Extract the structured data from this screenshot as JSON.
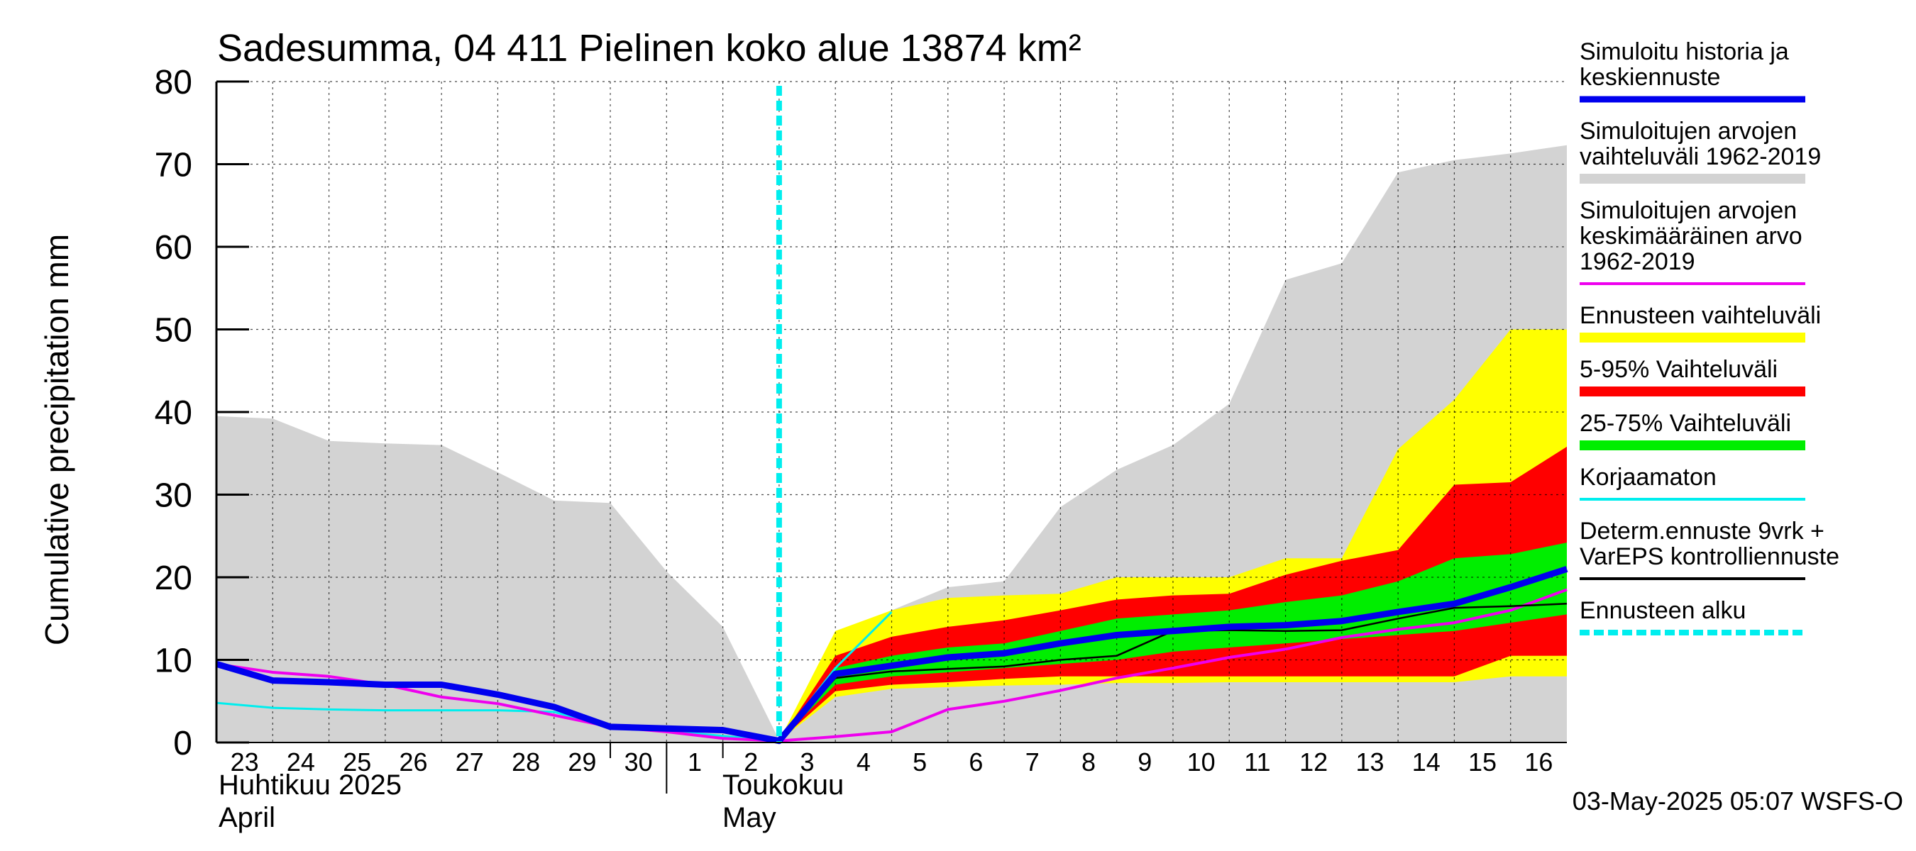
{
  "chart_data": {
    "type": "area",
    "title": "Sadesumma, 04 411 Pielinen koko alue 13874 km²",
    "ylabel": "Cumulative precipitation   mm",
    "ylim": [
      0,
      80
    ],
    "yticks": [
      0,
      10,
      20,
      30,
      40,
      50,
      60,
      70,
      80
    ],
    "grid": true,
    "legend_placement": "right",
    "x_dates": [
      "2025-04-23",
      "2025-04-24",
      "2025-04-25",
      "2025-04-26",
      "2025-04-27",
      "2025-04-28",
      "2025-04-29",
      "2025-04-30",
      "2025-05-01",
      "2025-05-02",
      "2025-05-03",
      "2025-05-04",
      "2025-05-05",
      "2025-05-06",
      "2025-05-07",
      "2025-05-08",
      "2025-05-09",
      "2025-05-10",
      "2025-05-11",
      "2025-05-12",
      "2025-05-13",
      "2025-05-14",
      "2025-05-15",
      "2025-05-16",
      "2025-05-17"
    ],
    "tick_labels": [
      "23",
      "24",
      "25",
      "26",
      "27",
      "28",
      "29",
      "30",
      "1",
      "2",
      "3",
      "4",
      "5",
      "6",
      "7",
      "8",
      "9",
      "10",
      "11",
      "12",
      "13",
      "14",
      "15",
      "16"
    ],
    "month_labels": [
      {
        "line1": "Huhtikuu  2025",
        "line2": "April"
      },
      {
        "line1": "Toukokuu",
        "line2": "May"
      }
    ],
    "forecast_start": "2025-05-03",
    "timestamp": "03-May-2025 05:07 WSFS-O",
    "colors": {
      "history_range": "#d3d3d3",
      "forecast_range": "#ffff00",
      "p5_95": "#ff0000",
      "p25_75": "#00ee00",
      "simulated": "#0000ee",
      "mean": "#ee00ee",
      "uncorrected": "#00eeee",
      "deterministic": "#000000",
      "forecast_start": "#00eeee"
    },
    "series": [
      {
        "name": "Simuloitu historia ja keskiennuste",
        "x": [
          "2025-04-23",
          "2025-04-24",
          "2025-04-25",
          "2025-04-26",
          "2025-04-27",
          "2025-04-28",
          "2025-04-29",
          "2025-04-30",
          "2025-05-01",
          "2025-05-02",
          "2025-05-03",
          "2025-05-04",
          "2025-05-05",
          "2025-05-06",
          "2025-05-07",
          "2025-05-08",
          "2025-05-09",
          "2025-05-10",
          "2025-05-11",
          "2025-05-12",
          "2025-05-13",
          "2025-05-14",
          "2025-05-15",
          "2025-05-16",
          "2025-05-17"
        ],
        "values": [
          9.5,
          7.5,
          7.3,
          7.0,
          7.0,
          5.8,
          4.3,
          1.9,
          1.7,
          1.5,
          0.2,
          8.3,
          9.3,
          10.3,
          10.8,
          12.0,
          13.0,
          13.5,
          14.0,
          14.2,
          14.7,
          15.8,
          16.8,
          18.8,
          21.0
        ]
      },
      {
        "name": "Simuloitujen arvojen keskimääräinen arvo 1962-2019",
        "x": [
          "2025-04-23",
          "2025-04-24",
          "2025-04-25",
          "2025-04-26",
          "2025-04-27",
          "2025-04-28",
          "2025-04-29",
          "2025-04-30",
          "2025-05-01",
          "2025-05-02",
          "2025-05-03",
          "2025-05-04",
          "2025-05-05",
          "2025-05-06",
          "2025-05-07",
          "2025-05-08",
          "2025-05-09",
          "2025-05-10",
          "2025-05-11",
          "2025-05-12",
          "2025-05-13",
          "2025-05-14",
          "2025-05-15",
          "2025-05-16",
          "2025-05-17"
        ],
        "values": [
          9.5,
          8.5,
          8.0,
          7.0,
          5.5,
          4.7,
          3.3,
          1.9,
          1.3,
          0.5,
          0.2,
          0.7,
          1.3,
          4.0,
          5.0,
          6.3,
          7.8,
          9.0,
          10.3,
          11.3,
          12.7,
          13.7,
          14.5,
          16.0,
          18.5
        ]
      },
      {
        "name": "Korjaamaton",
        "x": [
          "2025-04-23",
          "2025-04-24",
          "2025-04-25",
          "2025-04-26",
          "2025-04-27",
          "2025-04-28",
          "2025-04-29",
          "2025-04-30",
          "2025-05-01",
          "2025-05-02",
          "2025-05-03",
          "2025-05-04",
          "2025-05-05"
        ],
        "values": [
          4.8,
          4.2,
          4.0,
          3.9,
          3.9,
          3.9,
          3.7,
          1.8,
          1.4,
          0.8,
          0.2,
          9.0,
          15.8
        ]
      },
      {
        "name": "Determ.ennuste 9vrk + VarEPS kontrolliennuste",
        "x": [
          "2025-05-03",
          "2025-05-04",
          "2025-05-05",
          "2025-05-06",
          "2025-05-07",
          "2025-05-08",
          "2025-05-09",
          "2025-05-10",
          "2025-05-11",
          "2025-05-12",
          "2025-05-13",
          "2025-05-14",
          "2025-05-15",
          "2025-05-16",
          "2025-05-17"
        ],
        "values": [
          0.2,
          7.8,
          8.6,
          8.9,
          9.2,
          10.0,
          10.5,
          13.5,
          13.6,
          13.5,
          13.6,
          15.0,
          16.3,
          16.5,
          16.8
        ]
      }
    ],
    "bands": [
      {
        "name": "Simuloitujen arvojen vaihteluväli 1962-2019",
        "x": [
          "2025-04-23",
          "2025-04-24",
          "2025-04-25",
          "2025-04-26",
          "2025-04-27",
          "2025-04-28",
          "2025-04-29",
          "2025-04-30",
          "2025-05-01",
          "2025-05-02",
          "2025-05-03",
          "2025-05-04",
          "2025-05-05",
          "2025-05-06",
          "2025-05-07",
          "2025-05-08",
          "2025-05-09",
          "2025-05-10",
          "2025-05-11",
          "2025-05-12",
          "2025-05-13",
          "2025-05-14",
          "2025-05-15",
          "2025-05-16",
          "2025-05-17"
        ],
        "lower": [
          0,
          0,
          0,
          0,
          0,
          0,
          0,
          0,
          0,
          0,
          0,
          0,
          0,
          0,
          0,
          0,
          0,
          0,
          0,
          0,
          0,
          0,
          0,
          0,
          0
        ],
        "upper": [
          39.5,
          39.2,
          36.5,
          36.2,
          36.0,
          32.7,
          29.3,
          29.0,
          20.7,
          14.0,
          0.3,
          8.0,
          16.0,
          18.8,
          19.5,
          28.5,
          33.0,
          36.0,
          41.0,
          56.0,
          58.0,
          69.0,
          70.5,
          71.3,
          72.3
        ]
      },
      {
        "name": "Ennusteen vaihteluväli",
        "x": [
          "2025-05-03",
          "2025-05-04",
          "2025-05-05",
          "2025-05-06",
          "2025-05-07",
          "2025-05-08",
          "2025-05-09",
          "2025-05-10",
          "2025-05-11",
          "2025-05-12",
          "2025-05-13",
          "2025-05-14",
          "2025-05-15",
          "2025-05-16",
          "2025-05-17"
        ],
        "lower": [
          0.2,
          5.5,
          6.5,
          6.7,
          6.9,
          7.0,
          7.2,
          7.2,
          7.3,
          7.3,
          7.3,
          7.3,
          7.3,
          8.0,
          8.0
        ],
        "upper": [
          0.2,
          13.5,
          16.0,
          17.5,
          17.8,
          18.0,
          20.0,
          20.0,
          20.0,
          22.3,
          22.3,
          35.5,
          41.5,
          50.0,
          50.0
        ]
      },
      {
        "name": "5-95% Vaihteluväli",
        "x": [
          "2025-05-03",
          "2025-05-04",
          "2025-05-05",
          "2025-05-06",
          "2025-05-07",
          "2025-05-08",
          "2025-05-09",
          "2025-05-10",
          "2025-05-11",
          "2025-05-12",
          "2025-05-13",
          "2025-05-14",
          "2025-05-15",
          "2025-05-16",
          "2025-05-17"
        ],
        "lower": [
          0.2,
          6.2,
          7.0,
          7.3,
          7.7,
          8.0,
          8.0,
          8.0,
          8.0,
          8.0,
          8.0,
          8.0,
          8.0,
          10.5,
          10.5
        ],
        "upper": [
          0.2,
          10.5,
          12.8,
          14.0,
          14.8,
          16.0,
          17.3,
          17.8,
          18.0,
          20.3,
          22.0,
          23.3,
          31.2,
          31.5,
          35.8
        ]
      },
      {
        "name": "25-75% Vaihteluväli",
        "x": [
          "2025-05-03",
          "2025-05-04",
          "2025-05-05",
          "2025-05-06",
          "2025-05-07",
          "2025-05-08",
          "2025-05-09",
          "2025-05-10",
          "2025-05-11",
          "2025-05-12",
          "2025-05-13",
          "2025-05-14",
          "2025-05-15",
          "2025-05-16",
          "2025-05-17"
        ],
        "lower": [
          0.2,
          7.0,
          8.0,
          8.5,
          9.0,
          9.5,
          10.0,
          11.0,
          11.5,
          12.0,
          12.5,
          13.0,
          13.5,
          14.5,
          15.5
        ],
        "upper": [
          0.2,
          9.0,
          10.5,
          11.5,
          12.0,
          13.5,
          15.0,
          15.5,
          16.0,
          17.0,
          17.8,
          19.5,
          22.3,
          22.8,
          24.2
        ]
      }
    ],
    "legend": [
      {
        "label": "Simuloitu historia ja\nkeskiennuste",
        "style": "thick-line",
        "color": "#0000ee"
      },
      {
        "label": "Simuloitujen arvojen\nvaihteluväli 1962-2019",
        "style": "bar",
        "color": "#d3d3d3"
      },
      {
        "label": "Simuloitujen arvojen\nkeskimääräinen arvo\n   1962-2019",
        "style": "line",
        "color": "#ee00ee"
      },
      {
        "label": "Ennusteen vaihteluväli",
        "style": "bar",
        "color": "#ffff00"
      },
      {
        "label": "5-95% Vaihteluväli",
        "style": "bar",
        "color": "#ff0000"
      },
      {
        "label": "25-75% Vaihteluväli",
        "style": "bar",
        "color": "#00ee00"
      },
      {
        "label": "Korjaamaton",
        "style": "line",
        "color": "#00eeee"
      },
      {
        "label": "Determ.ennuste 9vrk +\nVarEPS kontrolliennuste",
        "style": "line",
        "color": "#000000"
      },
      {
        "label": "Ennusteen alku",
        "style": "dashed",
        "color": "#00eeee"
      }
    ]
  }
}
